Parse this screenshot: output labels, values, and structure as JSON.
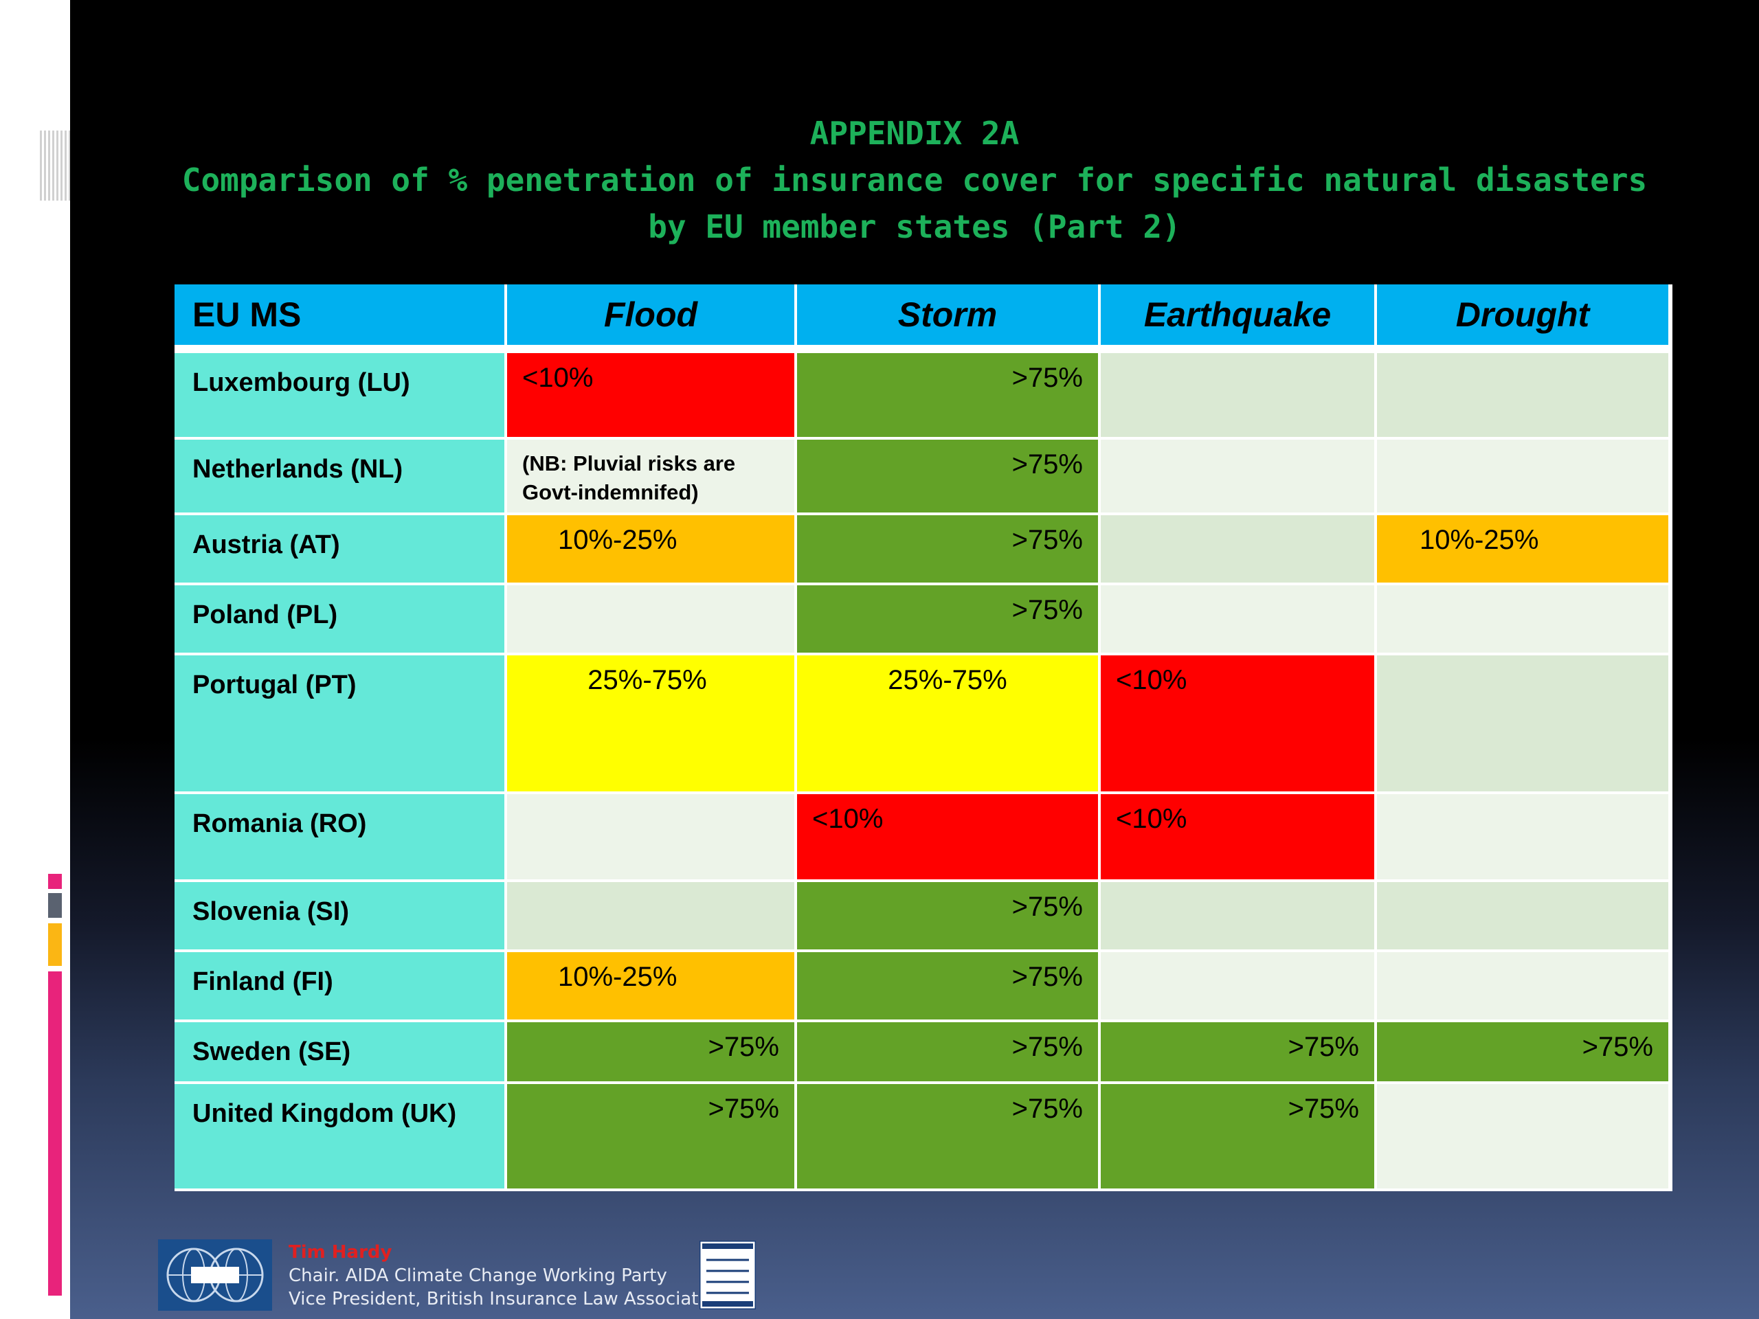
{
  "title": {
    "line1": "APPENDIX 2A",
    "line2": "Comparison of % penetration of insurance cover for specific natural disasters",
    "line3": "by EU member states (Part 2)"
  },
  "colors": {
    "title": "#1db15a",
    "header": "#00b0ef",
    "rowlabel": "#64e8d8",
    "lt10": "#ff0000",
    "gt75": "#63a227",
    "p10_25": "#ffc000",
    "p25_75": "#ffff00",
    "empty_dark": "#dae9d3",
    "empty_light": "#edf4e9"
  },
  "table": {
    "headers": [
      "EU MS",
      "Flood",
      "Storm",
      "Earthquake",
      "Drought"
    ],
    "rows": [
      {
        "label": "Luxembourg (LU)",
        "cells": [
          "<10%",
          ">75%",
          "",
          ""
        ]
      },
      {
        "label": "Netherlands (NL)",
        "cells": [
          "(NB: Pluvial risks are",
          ">75%",
          "",
          ""
        ],
        "note2": "Govt-indemnifed)"
      },
      {
        "label": "Austria (AT)",
        "cells": [
          "10%-25%",
          ">75%",
          "",
          "10%-25%"
        ]
      },
      {
        "label": "Poland (PL)",
        "cells": [
          "",
          ">75%",
          "",
          ""
        ]
      },
      {
        "label": "Portugal (PT)",
        "cells": [
          "25%-75%",
          "25%-75%",
          "<10%",
          ""
        ]
      },
      {
        "label": "Romania (RO)",
        "cells": [
          "",
          "<10%",
          "<10%",
          ""
        ]
      },
      {
        "label": "Slovenia (SI)",
        "cells": [
          "",
          ">75%",
          "",
          ""
        ]
      },
      {
        "label": "Finland (FI)",
        "cells": [
          "10%-25%",
          ">75%",
          "",
          ""
        ]
      },
      {
        "label": "Sweden (SE)",
        "cells": [
          ">75%",
          ">75%",
          ">75%",
          ">75%"
        ]
      },
      {
        "label": "United Kingdom (UK)",
        "cells": [
          ">75%",
          ">75%",
          ">75%",
          ""
        ]
      }
    ]
  },
  "footer": {
    "logo_icon": "aida-globe-logo",
    "name": "Tim Hardy",
    "line1": "Chair. AIDA Climate Change Working Party",
    "line2": "Vice President, British Insurance Law Association",
    "bila_icon": "bila-logo"
  }
}
